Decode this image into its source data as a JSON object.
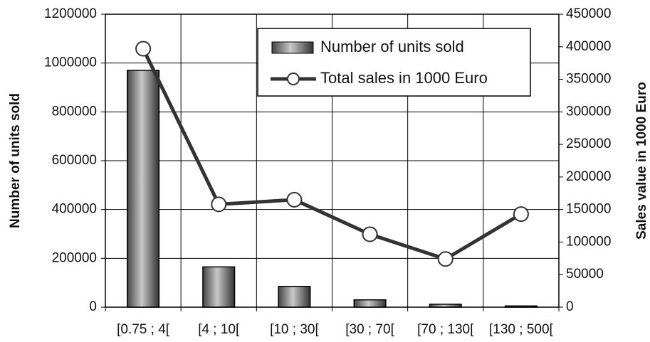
{
  "chart_data": {
    "type": "bar-line",
    "categories": [
      "[0.75 ; 4[",
      "[4 ; 10[",
      "[10 ; 30[",
      "[30 ; 70[",
      "[70 ; 130[",
      "[130 ; 500["
    ],
    "series": [
      {
        "name": "Number of units sold",
        "type": "bar",
        "color": "#6e6e6e",
        "values": [
          970000,
          165000,
          85000,
          30000,
          12000,
          5000
        ]
      },
      {
        "name": "Total sales in 1000 Euro",
        "type": "line",
        "axis": "y2",
        "color": "#333333",
        "values": [
          397000,
          158000,
          165000,
          112000,
          74000,
          143000
        ]
      }
    ],
    "ylabel": "Number of units sold",
    "y2label": "Sales value in 1000 Euro",
    "ylim": [
      0,
      1200000
    ],
    "yticks": [
      0,
      200000,
      400000,
      600000,
      800000,
      1000000,
      1200000
    ],
    "y2lim": [
      0,
      450000
    ],
    "y2ticks": [
      0,
      50000,
      100000,
      150000,
      200000,
      250000,
      300000,
      350000,
      400000,
      450000
    ],
    "grid": true,
    "legend": "top-right"
  }
}
